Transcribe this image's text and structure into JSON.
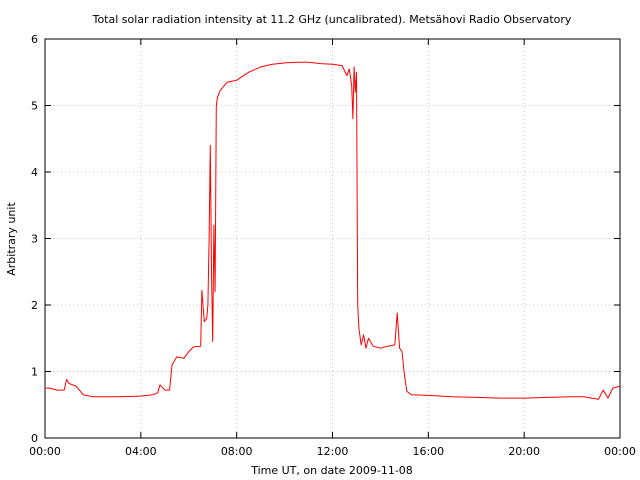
{
  "chart_data": {
    "type": "line",
    "title": "Total solar radiation intensity at 11.2 GHz (uncalibrated). Metsähovi Radio Observatory",
    "xlabel": "Time UT, on date 2009-11-08",
    "ylabel": "Arbitrary unit",
    "xlim": [
      "00:00",
      "24:00"
    ],
    "ylim": [
      0,
      6
    ],
    "x_ticks": [
      "00:00",
      "04:00",
      "08:00",
      "12:00",
      "16:00",
      "20:00",
      "00:00"
    ],
    "y_ticks": [
      "0",
      "1",
      "2",
      "3",
      "4",
      "5",
      "6"
    ],
    "grid": true,
    "line_color": "#ff0000",
    "series": [
      {
        "x": [
          0.0,
          0.2,
          0.5,
          0.8,
          0.9,
          1.0,
          1.3,
          1.6,
          2.0,
          3.0,
          4.0,
          4.5,
          4.7,
          4.8,
          5.0,
          5.2,
          5.3,
          5.5,
          5.8,
          6.0,
          6.2,
          6.5,
          6.55,
          6.65,
          6.75,
          6.8,
          6.85,
          6.9,
          6.95,
          7.0,
          7.05,
          7.1,
          7.15,
          7.2,
          7.3,
          7.6,
          8.0,
          8.5,
          9.0,
          9.5,
          10.0,
          10.5,
          11.0,
          11.5,
          12.0,
          12.4,
          12.6,
          12.7,
          12.8,
          12.85,
          12.9,
          12.95,
          13.0,
          13.05,
          13.1,
          13.2,
          13.3,
          13.4,
          13.5,
          13.7,
          14.0,
          14.3,
          14.6,
          14.7,
          14.8,
          14.9,
          15.0,
          15.1,
          15.3,
          16.0,
          17.0,
          18.0,
          19.0,
          20.0,
          21.0,
          22.0,
          22.5,
          22.8,
          23.0,
          23.1,
          23.3,
          23.5,
          23.7,
          24.0
        ],
        "y": [
          0.75,
          0.75,
          0.72,
          0.72,
          0.88,
          0.82,
          0.78,
          0.65,
          0.62,
          0.62,
          0.63,
          0.65,
          0.68,
          0.8,
          0.72,
          0.72,
          1.1,
          1.22,
          1.2,
          1.3,
          1.37,
          1.38,
          2.22,
          1.75,
          1.8,
          2.0,
          3.0,
          4.4,
          2.5,
          1.45,
          3.2,
          2.2,
          5.0,
          5.12,
          5.22,
          5.35,
          5.38,
          5.5,
          5.58,
          5.62,
          5.64,
          5.65,
          5.65,
          5.63,
          5.62,
          5.6,
          5.45,
          5.55,
          5.3,
          4.8,
          5.58,
          5.2,
          5.5,
          2.0,
          1.65,
          1.4,
          1.55,
          1.35,
          1.5,
          1.38,
          1.35,
          1.38,
          1.4,
          1.88,
          1.35,
          1.3,
          0.95,
          0.7,
          0.65,
          0.64,
          0.62,
          0.61,
          0.6,
          0.6,
          0.61,
          0.62,
          0.62,
          0.6,
          0.59,
          0.58,
          0.72,
          0.6,
          0.75,
          0.78
        ]
      }
    ]
  }
}
